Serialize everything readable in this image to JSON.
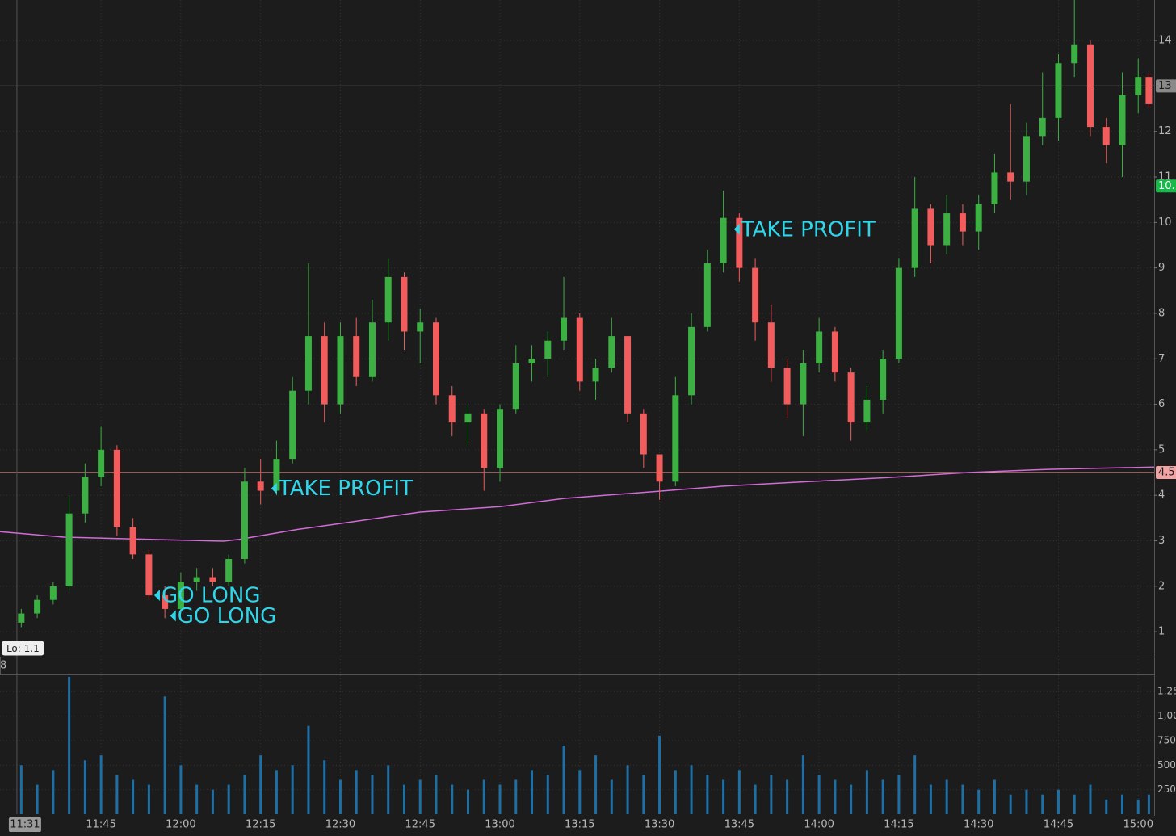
{
  "chart_data": {
    "type": "candlestick",
    "x": [
      "11:30",
      "11:33",
      "11:36",
      "11:39",
      "11:42",
      "11:45",
      "11:48",
      "11:51",
      "11:54",
      "11:57",
      "12:00",
      "12:03",
      "12:06",
      "12:09",
      "12:12",
      "12:15",
      "12:18",
      "12:21",
      "12:24",
      "12:27",
      "12:30",
      "12:33",
      "12:36",
      "12:39",
      "12:42",
      "12:45",
      "12:48",
      "12:51",
      "12:54",
      "12:57",
      "13:00",
      "13:03",
      "13:06",
      "13:09",
      "13:12",
      "13:15",
      "13:18",
      "13:21",
      "13:24",
      "13:27",
      "13:30",
      "13:33",
      "13:36",
      "13:39",
      "13:42",
      "13:45",
      "13:48",
      "13:51",
      "13:54",
      "13:57",
      "14:00",
      "14:03",
      "14:06",
      "14:09",
      "14:12",
      "14:15",
      "14:18",
      "14:21",
      "14:24",
      "14:27",
      "14:30",
      "14:33",
      "14:36",
      "14:39",
      "14:42",
      "14:45",
      "14:48",
      "14:51",
      "14:54",
      "14:57",
      "15:00",
      "15:02"
    ],
    "open": [
      1.2,
      1.4,
      1.7,
      2.0,
      3.6,
      4.4,
      5.0,
      3.3,
      2.7,
      1.8,
      1.5,
      2.1,
      2.2,
      2.1,
      2.6,
      4.3,
      4.1,
      4.8,
      6.3,
      7.5,
      6.0,
      7.5,
      6.6,
      7.8,
      8.8,
      7.6,
      7.8,
      6.2,
      5.6,
      5.8,
      4.6,
      5.9,
      6.9,
      7.0,
      7.4,
      7.9,
      6.5,
      6.8,
      7.5,
      5.8,
      4.9,
      4.3,
      6.2,
      7.7,
      9.1,
      10.1,
      9.0,
      7.8,
      6.8,
      6.0,
      6.9,
      7.6,
      6.7,
      5.6,
      6.1,
      7.0,
      9.0,
      10.3,
      9.5,
      10.2,
      9.8,
      10.4,
      11.1,
      10.9,
      11.9,
      12.3,
      13.5,
      13.9,
      12.1,
      11.7,
      12.8,
      13.2
    ],
    "high": [
      1.5,
      1.8,
      2.1,
      4.0,
      4.7,
      5.5,
      5.1,
      3.5,
      2.8,
      2.0,
      2.3,
      2.4,
      2.4,
      2.7,
      4.6,
      4.8,
      5.2,
      6.6,
      9.1,
      7.8,
      7.8,
      7.9,
      8.3,
      9.2,
      8.9,
      8.1,
      7.9,
      6.4,
      6.0,
      5.9,
      6.0,
      7.3,
      7.3,
      7.6,
      8.8,
      8.0,
      7.0,
      7.9,
      7.5,
      5.9,
      4.9,
      6.6,
      8.0,
      9.4,
      10.7,
      10.2,
      9.2,
      8.2,
      7.0,
      7.2,
      7.9,
      7.7,
      6.8,
      6.4,
      7.2,
      9.2,
      11.0,
      10.4,
      10.6,
      10.4,
      10.6,
      11.5,
      12.6,
      12.2,
      13.3,
      13.7,
      14.9,
      14.0,
      12.3,
      13.3,
      13.6,
      13.3
    ],
    "low": [
      1.1,
      1.3,
      1.6,
      1.9,
      3.4,
      4.2,
      3.1,
      2.6,
      1.7,
      1.3,
      1.4,
      1.9,
      2.0,
      2.0,
      2.5,
      3.8,
      4.0,
      4.7,
      6.0,
      5.6,
      5.8,
      6.4,
      6.5,
      7.4,
      7.2,
      6.9,
      6.0,
      5.3,
      5.1,
      4.1,
      4.3,
      5.8,
      6.5,
      6.6,
      7.2,
      6.3,
      6.1,
      6.7,
      5.6,
      4.6,
      3.9,
      4.2,
      6.0,
      7.6,
      8.9,
      8.7,
      7.4,
      6.5,
      5.7,
      5.3,
      6.7,
      6.5,
      5.2,
      5.4,
      5.8,
      6.9,
      8.8,
      9.1,
      9.3,
      9.5,
      9.4,
      10.2,
      10.5,
      10.6,
      11.7,
      11.8,
      13.2,
      11.9,
      11.3,
      11.0,
      12.4,
      12.5
    ],
    "close": [
      1.4,
      1.7,
      2.0,
      3.6,
      4.4,
      5.0,
      3.3,
      2.7,
      1.8,
      1.5,
      2.1,
      2.2,
      2.1,
      2.6,
      4.3,
      4.1,
      4.8,
      6.3,
      7.5,
      6.0,
      7.5,
      6.6,
      7.8,
      8.8,
      7.6,
      7.8,
      6.2,
      5.6,
      5.8,
      4.6,
      5.9,
      6.9,
      7.0,
      7.4,
      7.9,
      6.5,
      6.8,
      7.5,
      5.8,
      4.9,
      4.3,
      6.2,
      7.7,
      9.1,
      10.1,
      9.0,
      7.8,
      6.8,
      6.0,
      6.9,
      7.6,
      6.7,
      5.6,
      6.1,
      7.0,
      9.0,
      10.3,
      9.5,
      10.2,
      9.8,
      10.4,
      11.1,
      10.9,
      11.9,
      12.3,
      13.5,
      13.9,
      12.1,
      11.7,
      12.8,
      13.2,
      12.6
    ],
    "volume": [
      500,
      300,
      450,
      1400,
      550,
      600,
      400,
      350,
      300,
      1200,
      500,
      300,
      250,
      300,
      400,
      600,
      450,
      500,
      900,
      550,
      350,
      450,
      400,
      500,
      300,
      350,
      400,
      300,
      250,
      350,
      300,
      350,
      450,
      400,
      700,
      450,
      600,
      350,
      500,
      400,
      800,
      450,
      500,
      400,
      350,
      450,
      300,
      400,
      350,
      600,
      400,
      350,
      300,
      450,
      350,
      400,
      600,
      300,
      350,
      300,
      250,
      350,
      200,
      250,
      200,
      250,
      200,
      300,
      150,
      200,
      150,
      200
    ],
    "colors": {
      "up": "#3cb043",
      "down": "#f25c5c",
      "volume": "#1d6fa5",
      "ma": "#d36bd8"
    },
    "ma": {
      "x": [
        "11:26",
        "11:38",
        "12:08",
        "12:11",
        "12:22",
        "12:30",
        "12:45",
        "13:00",
        "13:12",
        "13:30",
        "13:42",
        "13:58",
        "14:13",
        "14:28",
        "14:43",
        "15:03"
      ],
      "values": [
        3.2,
        3.08,
        2.99,
        3.03,
        3.25,
        3.38,
        3.63,
        3.75,
        3.93,
        4.09,
        4.2,
        4.3,
        4.39,
        4.5,
        4.57,
        4.62
      ]
    },
    "xlim": [
      "11:26",
      "15:03"
    ],
    "xticks": [
      "11:45",
      "12:00",
      "12:15",
      "12:30",
      "12:45",
      "13:00",
      "13:15",
      "13:30",
      "13:45",
      "14:00",
      "14:15",
      "14:30",
      "14:45",
      "15:00"
    ],
    "ylim": [
      0.54,
      14.89
    ],
    "yticks": [
      1,
      2,
      3,
      4,
      5,
      6,
      7,
      8,
      9,
      10,
      11,
      12,
      13,
      14
    ],
    "volume_ylim": [
      0,
      1400
    ],
    "volume_yticks": [
      250,
      500,
      750,
      {
        "value": 1000,
        "label": "1,000"
      },
      {
        "value": 1250,
        "label": "1,25"
      }
    ],
    "price_lines": [
      {
        "value": 13,
        "label": "13",
        "color": "#8a8a8a"
      },
      {
        "value": 4.5,
        "label": "4.5",
        "color": "#f2a3a3"
      }
    ],
    "price_marker": {
      "value": 10.8,
      "label": "10.",
      "color": "#19b84a"
    },
    "annotations": [
      {
        "text": "GO LONG",
        "x": "11:55",
        "y": 1.8
      },
      {
        "text": "GO LONG",
        "x": "11:58",
        "y": 1.35
      },
      {
        "text": "TAKE PROFIT",
        "x": "12:17",
        "y": 4.15
      },
      {
        "text": "TAKE PROFIT",
        "x": "13:44",
        "y": 9.85
      }
    ],
    "low_label": "Lo: 1.1",
    "crosshair_time": "11:31",
    "study_label": "8"
  }
}
